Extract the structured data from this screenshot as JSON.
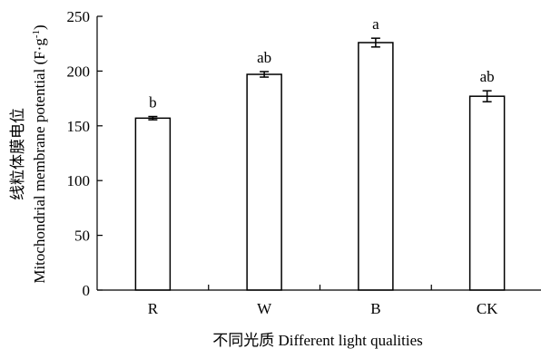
{
  "chart_data": {
    "type": "bar",
    "categories": [
      "R",
      "W",
      "B",
      "CK"
    ],
    "values": [
      157,
      197,
      226,
      177
    ],
    "errors": [
      1.5,
      2.5,
      4,
      5
    ],
    "significance": [
      "b",
      "ab",
      "a",
      "ab"
    ],
    "xlabel": "不同光质 Different light qualities",
    "ylabel_cn": "线粒体膜电位",
    "ylabel_en_main": "Mitochondrial membrane potential (F·g",
    "ylabel_en_sup": "-1",
    "ylabel_en_end": ")",
    "ylim": [
      0,
      250
    ],
    "yticks": [
      0,
      50,
      100,
      150,
      200,
      250
    ],
    "grid": false,
    "bar_fill": "#ffffff",
    "bar_stroke": "#000000"
  }
}
